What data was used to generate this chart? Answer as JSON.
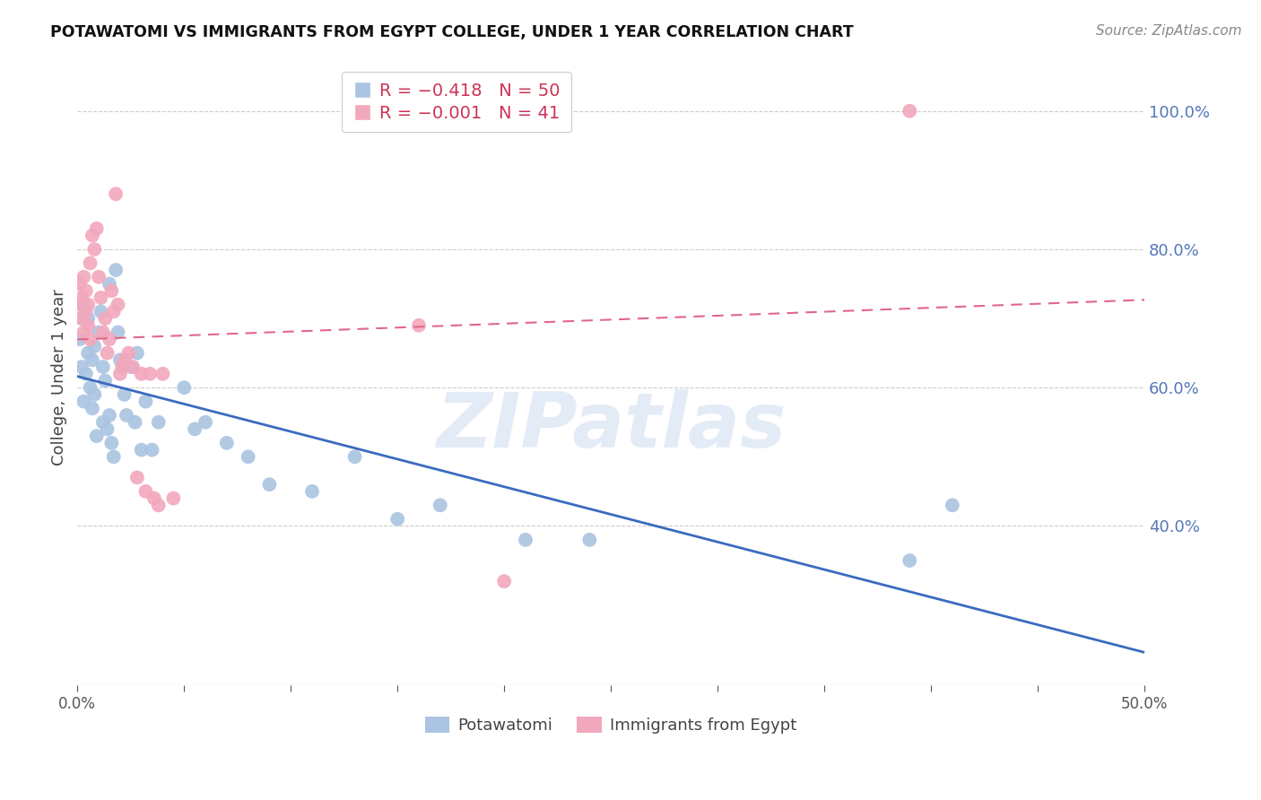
{
  "title": "POTAWATOMI VS IMMIGRANTS FROM EGYPT COLLEGE, UNDER 1 YEAR CORRELATION CHART",
  "source": "Source: ZipAtlas.com",
  "ylabel": "College, Under 1 year",
  "legend_label1": "Potawatomi",
  "legend_label2": "Immigrants from Egypt",
  "R1": -0.418,
  "N1": 50,
  "R2": -0.001,
  "N2": 41,
  "blue_color": "#aac4e2",
  "pink_color": "#f2a8bc",
  "line_blue": "#3a6bbf",
  "line_pink": "#e06888",
  "xlim": [
    0.0,
    0.5
  ],
  "ylim": [
    0.17,
    1.06
  ],
  "x_ticks": [
    0.0,
    0.05,
    0.1,
    0.15,
    0.2,
    0.25,
    0.3,
    0.35,
    0.4,
    0.45,
    0.5
  ],
  "x_tick_labels": [
    "0.0%",
    "",
    "",
    "",
    "",
    "",
    "",
    "",
    "",
    "",
    "50.0%"
  ],
  "y_ticks_right": [
    0.4,
    0.6,
    0.8,
    1.0
  ],
  "watermark": "ZIPatlas",
  "potawatomi_x": [
    0.001,
    0.002,
    0.002,
    0.003,
    0.003,
    0.004,
    0.005,
    0.005,
    0.006,
    0.007,
    0.007,
    0.008,
    0.008,
    0.009,
    0.01,
    0.011,
    0.012,
    0.012,
    0.013,
    0.014,
    0.015,
    0.015,
    0.016,
    0.017,
    0.018,
    0.019,
    0.02,
    0.022,
    0.023,
    0.025,
    0.027,
    0.028,
    0.03,
    0.032,
    0.035,
    0.038,
    0.05,
    0.055,
    0.06,
    0.07,
    0.08,
    0.09,
    0.11,
    0.13,
    0.15,
    0.17,
    0.21,
    0.24,
    0.39,
    0.41
  ],
  "potawatomi_y": [
    0.67,
    0.63,
    0.7,
    0.58,
    0.72,
    0.62,
    0.65,
    0.7,
    0.6,
    0.57,
    0.64,
    0.59,
    0.66,
    0.53,
    0.68,
    0.71,
    0.55,
    0.63,
    0.61,
    0.54,
    0.56,
    0.75,
    0.52,
    0.5,
    0.77,
    0.68,
    0.64,
    0.59,
    0.56,
    0.63,
    0.55,
    0.65,
    0.51,
    0.58,
    0.51,
    0.55,
    0.6,
    0.54,
    0.55,
    0.52,
    0.5,
    0.46,
    0.45,
    0.5,
    0.41,
    0.43,
    0.38,
    0.38,
    0.35,
    0.43
  ],
  "egypt_x": [
    0.001,
    0.001,
    0.002,
    0.002,
    0.003,
    0.003,
    0.004,
    0.004,
    0.005,
    0.005,
    0.006,
    0.006,
    0.007,
    0.008,
    0.009,
    0.01,
    0.011,
    0.012,
    0.013,
    0.014,
    0.015,
    0.016,
    0.017,
    0.018,
    0.019,
    0.02,
    0.021,
    0.022,
    0.024,
    0.026,
    0.028,
    0.03,
    0.032,
    0.034,
    0.036,
    0.038,
    0.04,
    0.045,
    0.16,
    0.2,
    0.39
  ],
  "egypt_y": [
    0.72,
    0.75,
    0.7,
    0.73,
    0.68,
    0.76,
    0.71,
    0.74,
    0.69,
    0.72,
    0.67,
    0.78,
    0.82,
    0.8,
    0.83,
    0.76,
    0.73,
    0.68,
    0.7,
    0.65,
    0.67,
    0.74,
    0.71,
    0.88,
    0.72,
    0.62,
    0.63,
    0.64,
    0.65,
    0.63,
    0.47,
    0.62,
    0.45,
    0.62,
    0.44,
    0.43,
    0.62,
    0.44,
    0.69,
    0.32,
    1.0
  ]
}
